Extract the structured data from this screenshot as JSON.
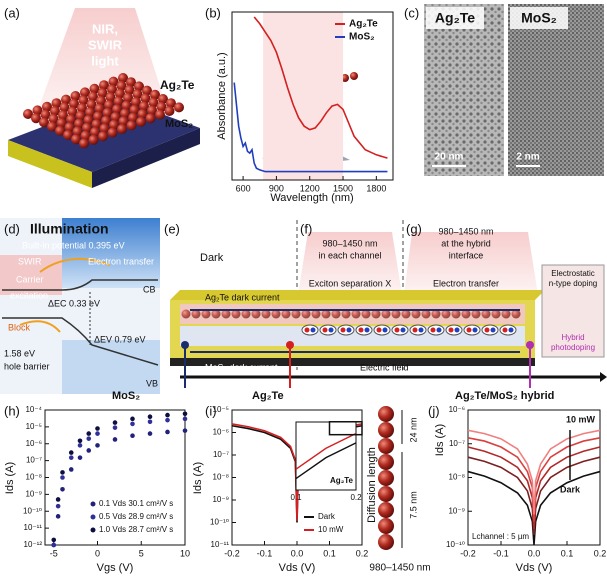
{
  "figure": {
    "a": {
      "label": "(a)",
      "light": [
        "NIR,",
        "SWIR",
        "light"
      ],
      "top": "Ag₂Te",
      "bottom": "MoS₂"
    },
    "c": {
      "label": "(c)",
      "left": "Ag₂Te",
      "right": "MoS₂",
      "left_scale": "20 nm",
      "right_scale": "2 nm"
    },
    "d": {
      "label": "(d)",
      "title": "Illumination",
      "built_in": "Built-in potential 0.395 eV",
      "swir": "SWIR",
      "electron_transfer": "Electron transfer",
      "carrier": "Carrier",
      "excitation": "excitation",
      "cb": "CB",
      "dec": "ΔEC 0.33 eV",
      "block": "Block",
      "barrier_value": "1.58 eV",
      "barrier": "hole barrier",
      "dev": "ΔEV 0.79 eV",
      "vb": "VB"
    },
    "e": {
      "label": "(e)",
      "dark": "Dark",
      "f_label": "(f)",
      "f_text": [
        "980–1450 nm",
        "in each channel"
      ],
      "exciton": "Exciton separation X",
      "g_label": "(g)",
      "g_text": [
        "980–1450 nm",
        "at the hybrid",
        "interface"
      ],
      "electron_transfer": "Electron transfer",
      "ag_dark": "Ag₂Te dark current",
      "mos_dark": "MoS₂ dark current",
      "field": "Electric field",
      "doping": [
        "Electrostatic",
        "n-type doping"
      ],
      "hybrid": [
        "Hybrid",
        "photodoping"
      ],
      "out_mos": "MoS₂",
      "out_ag": "Ag₂Te",
      "out_hybrid": "Ag₂Te/MoS₂ hybrid"
    },
    "j_diagram": {
      "diffusion": "Diffusion length",
      "d1": "24 nm",
      "d2": "7.5 nm",
      "wavelength": "980–1450 nm"
    }
  },
  "chart_data": [
    {
      "type": "line",
      "label": "(b)",
      "ylabel": "Absorbance (a.u.)",
      "xlabel": "Wavelength (nm)",
      "xlim": [
        500,
        1950
      ],
      "xticks": [
        600,
        900,
        1200,
        1500,
        1800
      ],
      "ylim": [
        0,
        1
      ],
      "shade": [
        780,
        1500
      ],
      "legend": "upper right",
      "series": [
        {
          "name": "Ag₂Te",
          "color": "#d42020",
          "x": [
            700,
            750,
            800,
            850,
            900,
            950,
            1000,
            1050,
            1100,
            1150,
            1200,
            1250,
            1300,
            1350,
            1400,
            1450,
            1500,
            1550,
            1600,
            1700,
            1800,
            1900
          ],
          "values": [
            0.97,
            0.93,
            0.88,
            0.83,
            0.76,
            0.66,
            0.55,
            0.45,
            0.37,
            0.32,
            0.3,
            0.31,
            0.35,
            0.4,
            0.44,
            0.45,
            0.42,
            0.34,
            0.26,
            0.18,
            0.15,
            0.13
          ]
        },
        {
          "name": "MoS₂",
          "color": "#1f3fbf",
          "x": [
            520,
            540,
            560,
            580,
            600,
            620,
            640,
            660,
            680,
            700,
            720,
            750,
            800,
            900,
            1000,
            1200,
            1400,
            1600,
            1800,
            1900
          ],
          "values": [
            0.58,
            0.45,
            0.32,
            0.25,
            0.2,
            0.22,
            0.17,
            0.16,
            0.18,
            0.1,
            0.07,
            0.06,
            0.05,
            0.05,
            0.05,
            0.05,
            0.05,
            0.05,
            0.05,
            0.05
          ]
        }
      ]
    },
    {
      "type": "scatter",
      "label": "(h)",
      "ylabel": "Ids (A)",
      "xlabel": "Vgs (V)",
      "ylog": true,
      "xlim": [
        -6,
        10
      ],
      "xticks": [
        -5,
        0,
        5,
        10
      ],
      "ylim": [
        1e-12,
        0.0001
      ],
      "yticks": [
        {
          "value": 1e-12,
          "label": "10⁻¹²"
        },
        {
          "value": 1e-11,
          "label": "10⁻¹¹"
        },
        {
          "value": 1e-10,
          "label": "10⁻¹⁰"
        },
        {
          "value": 1e-09,
          "label": "10⁻⁹"
        },
        {
          "value": 1e-08,
          "label": "10⁻⁸"
        },
        {
          "value": 1e-07,
          "label": "10⁻⁷"
        },
        {
          "value": 1e-06,
          "label": "10⁻⁶"
        },
        {
          "value": 1e-05,
          "label": "10⁻⁵"
        },
        {
          "value": 0.0001,
          "label": "10⁻⁴"
        }
      ],
      "legend": "lower right",
      "x": [
        -5,
        -4.5,
        -4,
        -3,
        -2,
        -1,
        0,
        2,
        4,
        6,
        8,
        10
      ],
      "series": [
        {
          "name": "0.1 Vds 30.1 cm²/V s",
          "color": "#22227a",
          "values": [
            1e-12,
            5e-11,
            2e-09,
            3e-08,
            1.5e-07,
            4e-07,
            8e-07,
            1.8e-06,
            3e-06,
            4e-06,
            5e-06,
            6e-06
          ]
        },
        {
          "name": "0.5 Vds 28.9 cm²/V s",
          "color": "#30309a",
          "values": [
            1e-12,
            2e-10,
            1e-08,
            1.5e-07,
            8e-07,
            2e-06,
            4e-06,
            9e-06,
            1.5e-05,
            2e-05,
            2.5e-05,
            3e-05
          ]
        },
        {
          "name": "1.0 Vds 28.7 cm²/V s",
          "color": "#0e0e40",
          "values": [
            2e-12,
            5e-10,
            2e-08,
            3e-07,
            1.5e-06,
            4e-06,
            8e-06,
            1.8e-05,
            3e-05,
            4e-05,
            5e-05,
            6e-05
          ]
        }
      ]
    },
    {
      "type": "line",
      "label": "(i)",
      "ylabel": "Ids (A)",
      "xlabel": "Vds (V)",
      "ylog": true,
      "xlim": [
        -0.2,
        0.2
      ],
      "xticks": [
        -0.2,
        -0.1,
        {
          "value": 0,
          "label": "0.0"
        },
        0.1,
        0.2
      ],
      "ylim": [
        1e-11,
        1e-05
      ],
      "yticks": [
        {
          "value": 1e-11,
          "label": "10⁻¹¹"
        },
        {
          "value": 1e-10,
          "label": "10⁻¹⁰"
        },
        {
          "value": 1e-09,
          "label": "10⁻⁹"
        },
        {
          "value": 1e-08,
          "label": "10⁻⁸"
        },
        {
          "value": 1e-07,
          "label": "10⁻⁷"
        },
        {
          "value": 1e-06,
          "label": "10⁻⁶"
        },
        {
          "value": 1e-05,
          "label": "10⁻⁵"
        }
      ],
      "legend": "lower right",
      "x": [
        -0.2,
        -0.15,
        -0.1,
        -0.05,
        -0.02,
        -0.005,
        0,
        0.005,
        0.02,
        0.05,
        0.1,
        0.15,
        0.2
      ],
      "series": [
        {
          "name": "Dark",
          "color": "#111111",
          "values": [
            2e-06,
            1.5e-06,
            1e-06,
            5e-07,
            2e-07,
            5e-08,
            1e-10,
            5e-08,
            2e-07,
            5e-07,
            1e-06,
            1.5e-06,
            2e-06
          ]
        },
        {
          "name": "10 mW",
          "color": "#d42020",
          "values": [
            2.4e-06,
            1.8e-06,
            1.2e-06,
            6e-07,
            2.4e-07,
            6e-08,
            1.2e-10,
            6e-08,
            2.4e-07,
            6e-07,
            1.2e-06,
            1.8e-06,
            2.4e-06
          ]
        }
      ],
      "inset": {
        "title": "Ag₂Te",
        "xlim": [
          0.1,
          0.2
        ],
        "xticks": [
          0.1,
          0.2
        ],
        "ylim": [
          8e-07,
          3e-06
        ]
      }
    },
    {
      "type": "line",
      "label": "(j)",
      "ylabel": "Ids (A)",
      "xlabel": "Vds (V)",
      "ylog": true,
      "xlim": [
        -0.2,
        0.2
      ],
      "xticks": [
        -0.2,
        -0.1,
        {
          "value": 0,
          "label": "0.0"
        },
        0.1,
        0.2
      ],
      "ylim": [
        1e-10,
        1e-06
      ],
      "yticks": [
        {
          "value": 1e-10,
          "label": "10⁻¹⁰"
        },
        {
          "value": 1e-09,
          "label": "10⁻⁹"
        },
        {
          "value": 1e-08,
          "label": "10⁻⁸"
        },
        {
          "value": 1e-07,
          "label": "10⁻⁷"
        },
        {
          "value": 1e-06,
          "label": "10⁻⁶"
        }
      ],
      "annotations": {
        "high": "10 mW",
        "low": "Dark",
        "channel": "Lchannel : 5 µm"
      },
      "x": [
        -0.2,
        -0.15,
        -0.1,
        -0.05,
        -0.02,
        -0.005,
        0,
        0.005,
        0.02,
        0.05,
        0.1,
        0.15,
        0.2
      ],
      "series": [
        {
          "color": "#111111",
          "values": [
            1.5e-08,
            1.1e-08,
            7e-09,
            3.5e-09,
            1.5e-09,
            5e-10,
            1e-10,
            5e-10,
            1.5e-09,
            3.5e-09,
            7e-09,
            1.1e-08,
            1.5e-08
          ]
        },
        {
          "color": "#7a2020",
          "values": [
            4e-08,
            3e-08,
            2e-08,
            1e-08,
            4e-09,
            1.2e-09,
            2e-10,
            1.2e-09,
            4e-09,
            1e-08,
            2e-08,
            3e-08,
            4e-08
          ]
        },
        {
          "color": "#b02a2a",
          "values": [
            8e-08,
            6e-08,
            4e-08,
            2e-08,
            8e-09,
            2.5e-09,
            3e-10,
            2.5e-09,
            8e-09,
            2e-08,
            4e-08,
            6e-08,
            8e-08
          ]
        },
        {
          "color": "#d94040",
          "values": [
            1.5e-07,
            1.2e-07,
            8e-08,
            4e-08,
            1.5e-08,
            5e-09,
            5e-10,
            5e-09,
            1.5e-08,
            4e-08,
            8e-08,
            1.2e-07,
            1.5e-07
          ]
        },
        {
          "color": "#f08080",
          "values": [
            2.5e-07,
            2e-07,
            1.4e-07,
            7e-08,
            2.5e-08,
            8e-09,
            8e-10,
            8e-09,
            2.5e-08,
            7e-08,
            1.4e-07,
            2e-07,
            2.5e-07
          ]
        }
      ]
    }
  ]
}
